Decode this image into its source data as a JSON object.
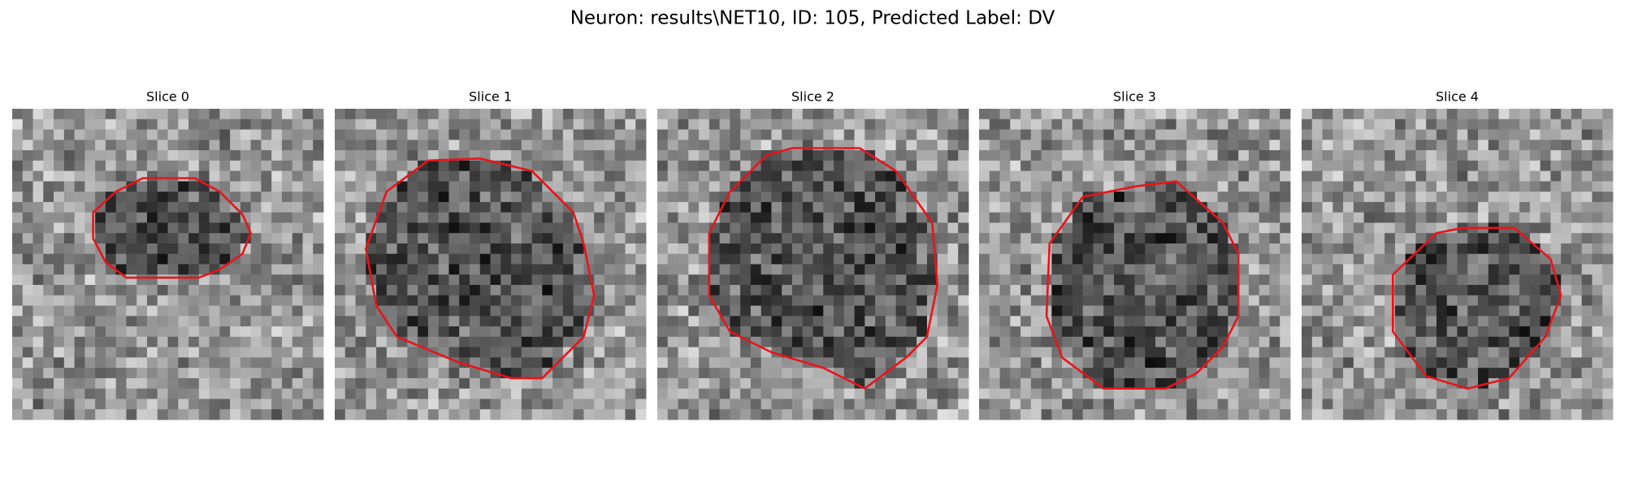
{
  "title": "Neuron: results\\NET10, ID: 105, Predicted Label: DV",
  "panels": [
    {
      "title": "Slice 0"
    },
    {
      "title": "Slice 1"
    },
    {
      "title": "Slice 2"
    },
    {
      "title": "Slice 3"
    },
    {
      "title": "Slice 4"
    }
  ]
}
